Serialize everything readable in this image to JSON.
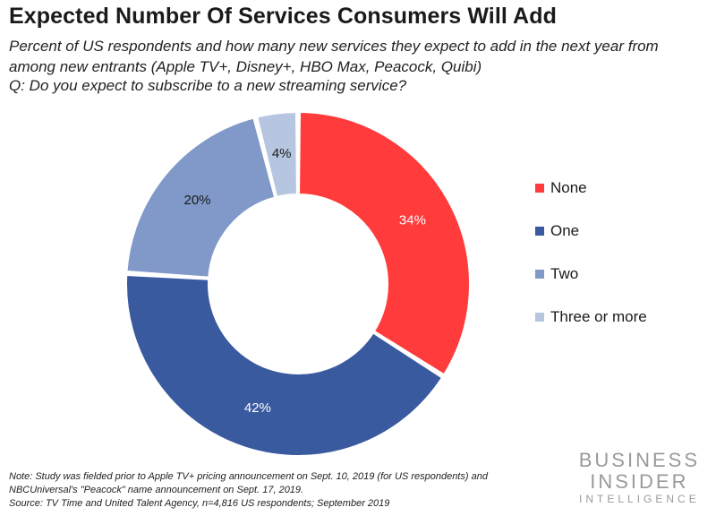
{
  "colors": {
    "None": "#ff3b3b",
    "One": "#3a5aa0",
    "Two": "#8099c8",
    "Three or more": "#b7c6e0"
  },
  "chart_data": {
    "type": "pie",
    "title": "Expected Number Of Services Consumers Will Add",
    "subtitle": "Percent of US respondents and how many new services they expect to add in the next year from among new entrants (Apple TV+, Disney+, HBO Max, Peacock, Quibi)",
    "question": "Q: Do you expect to subscribe to a new streaming service?",
    "categories": [
      "None",
      "One",
      "Two",
      "Three or more"
    ],
    "values": [
      34,
      42,
      20,
      4
    ],
    "labels": [
      "34%",
      "42%",
      "20%",
      "4%"
    ],
    "legend_position": "right"
  },
  "footer": {
    "note": "Note: Study was fielded prior to Apple TV+ pricing announcement on Sept. 10, 2019 (for US respondents) and NBCUniversal's \"Peacock\" name announcement on Sept. 17, 2019.",
    "source": "Source: TV Time and United Talent Agency, n=4,816 US respondents; September 2019"
  },
  "brand": {
    "line1": "BUSINESS",
    "line2": "INSIDER",
    "line3": "INTELLIGENCE"
  }
}
